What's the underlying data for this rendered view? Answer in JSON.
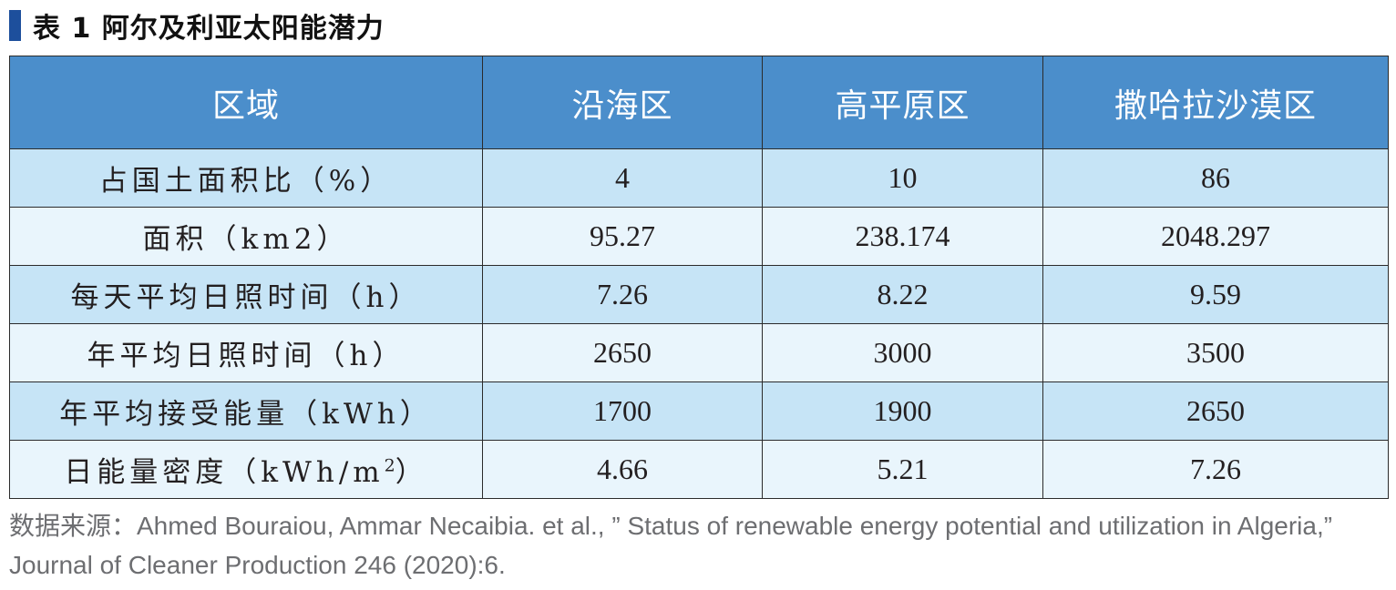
{
  "title": "表 1  阿尔及利亚太阳能潜力",
  "colors": {
    "title_marker": "#1d4f9c",
    "header_bg": "#4b8ecb",
    "row_odd_bg": "#c6e4f6",
    "row_even_bg": "#e9f5fc"
  },
  "table": {
    "headers": [
      "区域",
      "沿海区",
      "高平原区",
      "撒哈拉沙漠区"
    ],
    "rows": [
      {
        "label": "占国土面积比（%）",
        "values": [
          "4",
          "10",
          "86"
        ]
      },
      {
        "label": "面积（km2）",
        "values": [
          "95.27",
          "238.174",
          "2048.297"
        ]
      },
      {
        "label": "每天平均日照时间（h）",
        "values": [
          "7.26",
          "8.22",
          "9.59"
        ]
      },
      {
        "label": "年平均日照时间（h）",
        "values": [
          "2650",
          "3000",
          "3500"
        ]
      },
      {
        "label": "年平均接受能量（kWh）",
        "values": [
          "1700",
          "1900",
          "2650"
        ]
      },
      {
        "label_prefix": "日能量密度（kWh/m",
        "label_sup": "2",
        "label_suffix": "）",
        "values": [
          "4.66",
          "5.21",
          "7.26"
        ]
      }
    ]
  },
  "source": "数据来源：Ahmed Bouraiou, Ammar Necaibia. et al., ” Status of renewable energy potential and utilization in Algeria,” Journal of Cleaner Production 246 (2020):6."
}
